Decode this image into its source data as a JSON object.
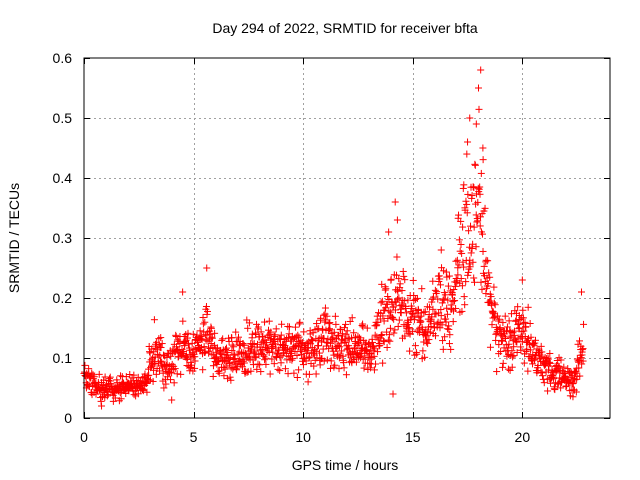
{
  "chart_data": {
    "type": "scatter",
    "title": "Day 294 of 2022, SRMTID for receiver bfta",
    "xlabel": "GPS time / hours",
    "ylabel": "SRMTID / TECUs",
    "xlim": [
      0,
      24
    ],
    "ylim": [
      0,
      0.6
    ],
    "x_ticks": [
      0,
      5,
      10,
      15,
      20
    ],
    "x_tick_labels": [
      "0",
      "5",
      "10",
      "15",
      "20"
    ],
    "y_ticks": [
      0,
      0.1,
      0.2,
      0.3,
      0.4,
      0.5,
      0.6
    ],
    "y_tick_labels": [
      "0",
      "0.1",
      "0.2",
      "0.3",
      "0.4",
      "0.5",
      "0.6"
    ],
    "grid": true,
    "marker": "plus",
    "color": "#ff0000",
    "series": [
      {
        "name": "bfta",
        "trend": [
          {
            "x": 0.0,
            "y": 0.07
          },
          {
            "x": 0.5,
            "y": 0.05
          },
          {
            "x": 1.0,
            "y": 0.05
          },
          {
            "x": 2.0,
            "y": 0.05
          },
          {
            "x": 2.8,
            "y": 0.06
          },
          {
            "x": 3.3,
            "y": 0.12
          },
          {
            "x": 3.8,
            "y": 0.08
          },
          {
            "x": 4.5,
            "y": 0.12
          },
          {
            "x": 5.0,
            "y": 0.1
          },
          {
            "x": 5.6,
            "y": 0.14
          },
          {
            "x": 6.0,
            "y": 0.1
          },
          {
            "x": 7.0,
            "y": 0.11
          },
          {
            "x": 8.0,
            "y": 0.12
          },
          {
            "x": 9.0,
            "y": 0.12
          },
          {
            "x": 10.0,
            "y": 0.11
          },
          {
            "x": 11.0,
            "y": 0.13
          },
          {
            "x": 12.0,
            "y": 0.12
          },
          {
            "x": 13.0,
            "y": 0.11
          },
          {
            "x": 13.8,
            "y": 0.17
          },
          {
            "x": 14.3,
            "y": 0.22
          },
          {
            "x": 14.8,
            "y": 0.17
          },
          {
            "x": 15.5,
            "y": 0.15
          },
          {
            "x": 16.2,
            "y": 0.18
          },
          {
            "x": 16.8,
            "y": 0.19
          },
          {
            "x": 17.3,
            "y": 0.28
          },
          {
            "x": 17.8,
            "y": 0.34
          },
          {
            "x": 18.1,
            "y": 0.38
          },
          {
            "x": 18.4,
            "y": 0.25
          },
          {
            "x": 18.8,
            "y": 0.14
          },
          {
            "x": 19.3,
            "y": 0.12
          },
          {
            "x": 19.8,
            "y": 0.15
          },
          {
            "x": 20.3,
            "y": 0.13
          },
          {
            "x": 21.0,
            "y": 0.08
          },
          {
            "x": 21.8,
            "y": 0.07
          },
          {
            "x": 22.3,
            "y": 0.06
          },
          {
            "x": 22.7,
            "y": 0.11
          }
        ],
        "spread": 0.35,
        "x_range": [
          0,
          22.8
        ],
        "notable_points": [
          {
            "x": 18.1,
            "y": 0.58
          },
          {
            "x": 18.0,
            "y": 0.55
          },
          {
            "x": 17.6,
            "y": 0.5
          },
          {
            "x": 17.5,
            "y": 0.46
          },
          {
            "x": 18.2,
            "y": 0.45
          },
          {
            "x": 17.9,
            "y": 0.49
          },
          {
            "x": 14.2,
            "y": 0.36
          },
          {
            "x": 14.3,
            "y": 0.33
          },
          {
            "x": 13.9,
            "y": 0.31
          },
          {
            "x": 5.6,
            "y": 0.25
          },
          {
            "x": 4.5,
            "y": 0.21
          },
          {
            "x": 16.3,
            "y": 0.28
          },
          {
            "x": 22.7,
            "y": 0.21
          },
          {
            "x": 20.0,
            "y": 0.23
          },
          {
            "x": 0.8,
            "y": 0.02
          },
          {
            "x": 4.0,
            "y": 0.03
          },
          {
            "x": 14.1,
            "y": 0.04
          }
        ]
      }
    ]
  }
}
